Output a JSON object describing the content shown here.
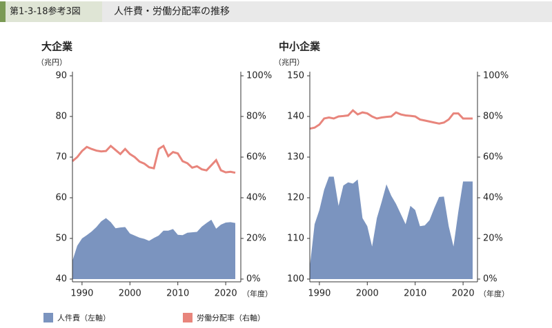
{
  "header": {
    "figure_no": "第1-3-18参考3図",
    "title": "人件費・労働分配率の推移"
  },
  "chart_data": [
    {
      "type": "area",
      "title": "大企業",
      "y_unit_label": "（兆円）",
      "x_unit_label": "（年度）",
      "x": [
        1988,
        1989,
        1990,
        1991,
        1992,
        1993,
        1994,
        1995,
        1996,
        1997,
        1998,
        1999,
        2000,
        2001,
        2002,
        2003,
        2004,
        2005,
        2006,
        2007,
        2008,
        2009,
        2010,
        2011,
        2012,
        2013,
        2014,
        2015,
        2016,
        2017,
        2018,
        2019,
        2020,
        2021,
        2022
      ],
      "xlim": [
        1988,
        2022
      ],
      "xticks": [
        1990,
        2000,
        2010,
        2020
      ],
      "ylim": [
        40,
        90
      ],
      "yticks": [
        40,
        50,
        60,
        70,
        80,
        90
      ],
      "y2lim": [
        0,
        100
      ],
      "y2ticks": [
        {
          "value": 0,
          "label": "0%"
        },
        {
          "value": 20,
          "label": "20%"
        },
        {
          "value": 40,
          "label": "40%"
        },
        {
          "value": 60,
          "label": "60%"
        },
        {
          "value": 80,
          "label": "80%"
        },
        {
          "value": 100,
          "label": "100%"
        }
      ],
      "series": [
        {
          "name": "人件費（左軸）",
          "type": "area",
          "color": "#7b94bf",
          "values": [
            44.5,
            48.2,
            50,
            50.8,
            51.7,
            52.8,
            54.2,
            55,
            54,
            52.5,
            52.7,
            52.8,
            51.2,
            50.7,
            50.2,
            49.9,
            49.4,
            50.1,
            50.7,
            51.9,
            51.9,
            52.3,
            50.9,
            50.8,
            51.4,
            51.5,
            51.6,
            52.9,
            53.8,
            54.6,
            52.4,
            53.4,
            53.9,
            54,
            53.8
          ]
        },
        {
          "name": "労働分配率（右軸）",
          "type": "line",
          "color": "#e8857c",
          "axis": "y2",
          "values": [
            58,
            60,
            63,
            65,
            64,
            63.2,
            62.8,
            63,
            65.5,
            63.5,
            61.5,
            64,
            61.5,
            60,
            57.8,
            56.8,
            55,
            54.5,
            64,
            65.5,
            60.5,
            62.5,
            61.8,
            58,
            57,
            54.8,
            55.5,
            54,
            53.5,
            56,
            58.5,
            53.5,
            52.5,
            52.8,
            52.3
          ]
        }
      ]
    },
    {
      "type": "area",
      "title": "中小企業",
      "y_unit_label": "（兆円）",
      "x_unit_label": "（年度）",
      "x": [
        1988,
        1989,
        1990,
        1991,
        1992,
        1993,
        1994,
        1995,
        1996,
        1997,
        1998,
        1999,
        2000,
        2001,
        2002,
        2003,
        2004,
        2005,
        2006,
        2007,
        2008,
        2009,
        2010,
        2011,
        2012,
        2013,
        2014,
        2015,
        2016,
        2017,
        2018,
        2019,
        2020,
        2021,
        2022
      ],
      "xlim": [
        1988,
        2022
      ],
      "xticks": [
        1990,
        2000,
        2010,
        2020
      ],
      "ylim": [
        100,
        150
      ],
      "yticks": [
        100,
        110,
        120,
        130,
        140,
        150
      ],
      "y2lim": [
        0,
        100
      ],
      "y2ticks": [
        {
          "value": 0,
          "label": "0%"
        },
        {
          "value": 20,
          "label": "20%"
        },
        {
          "value": 40,
          "label": "40%"
        },
        {
          "value": 60,
          "label": "60%"
        },
        {
          "value": 80,
          "label": "80%"
        },
        {
          "value": 100,
          "label": "100%"
        }
      ],
      "series": [
        {
          "type": "area",
          "color": "#7b94bf",
          "values": [
            103,
            113.5,
            117,
            122,
            125.2,
            125.2,
            118,
            123,
            123.8,
            123.5,
            124.5,
            115,
            113,
            108,
            115,
            119,
            123.3,
            120.5,
            118.5,
            116,
            113.5,
            118,
            117,
            113,
            113.2,
            114.5,
            117.5,
            120.2,
            120.3,
            113,
            108,
            116.5,
            124,
            124,
            124
          ]
        },
        {
          "type": "line",
          "color": "#e8857c",
          "axis": "y2",
          "values": [
            74,
            74.5,
            76,
            79,
            79.5,
            79,
            80,
            80.2,
            80.5,
            83,
            81,
            82,
            81.5,
            80,
            79,
            79.5,
            79.8,
            80,
            82,
            81,
            80.5,
            80.3,
            80,
            78.5,
            78,
            77.5,
            77,
            76.5,
            77,
            78.5,
            81.5,
            81.5,
            79,
            79,
            79
          ]
        }
      ]
    }
  ]
}
